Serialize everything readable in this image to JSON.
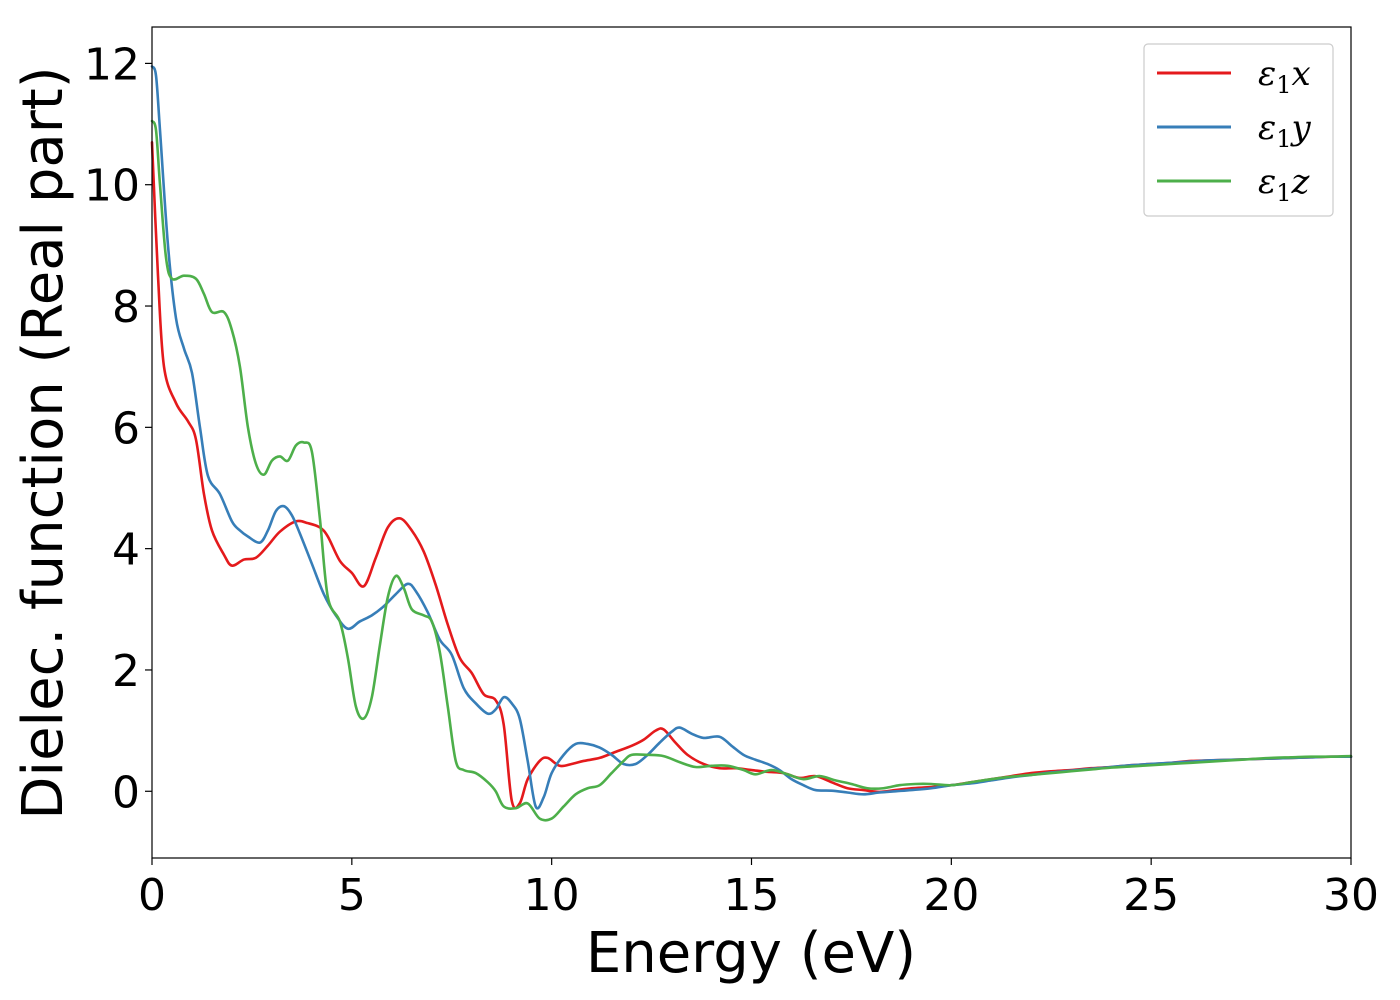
{
  "chart_data": {
    "type": "line",
    "title": "",
    "xlabel": "Energy (eV)",
    "ylabel": "Dielec. function (Real part)",
    "xlim": [
      0,
      30
    ],
    "ylim": [
      -1.1,
      12.6
    ],
    "xticks": [
      0,
      5,
      10,
      15,
      20,
      25,
      30
    ],
    "yticks": [
      0,
      2,
      4,
      6,
      8,
      10,
      12
    ],
    "xtick_labels": [
      "0",
      "5",
      "10",
      "15",
      "20",
      "25",
      "30"
    ],
    "ytick_labels": [
      "0",
      "2",
      "4",
      "6",
      "8",
      "10",
      "12"
    ],
    "grid": false,
    "legend_position": "top-right",
    "series": [
      {
        "name": "ε1x",
        "name_base": "ε",
        "name_sub": "1",
        "name_suffix": "x",
        "color": "#e41a1c",
        "points": [
          [
            0,
            10.7
          ],
          [
            0.15,
            8.5
          ],
          [
            0.3,
            7.0
          ],
          [
            0.6,
            6.4
          ],
          [
            0.9,
            6.1
          ],
          [
            1.1,
            5.8
          ],
          [
            1.3,
            4.9
          ],
          [
            1.5,
            4.3
          ],
          [
            1.8,
            3.9
          ],
          [
            2.0,
            3.72
          ],
          [
            2.3,
            3.82
          ],
          [
            2.6,
            3.85
          ],
          [
            2.9,
            4.05
          ],
          [
            3.2,
            4.28
          ],
          [
            3.6,
            4.45
          ],
          [
            3.9,
            4.42
          ],
          [
            4.2,
            4.35
          ],
          [
            4.4,
            4.2
          ],
          [
            4.7,
            3.8
          ],
          [
            5.0,
            3.6
          ],
          [
            5.3,
            3.38
          ],
          [
            5.6,
            3.85
          ],
          [
            5.9,
            4.35
          ],
          [
            6.2,
            4.5
          ],
          [
            6.5,
            4.3
          ],
          [
            6.8,
            3.95
          ],
          [
            7.1,
            3.4
          ],
          [
            7.4,
            2.75
          ],
          [
            7.7,
            2.2
          ],
          [
            8.0,
            1.95
          ],
          [
            8.3,
            1.6
          ],
          [
            8.6,
            1.5
          ],
          [
            8.8,
            1.1
          ],
          [
            9.0,
            -0.15
          ],
          [
            9.2,
            -0.2
          ],
          [
            9.4,
            0.2
          ],
          [
            9.7,
            0.5
          ],
          [
            9.9,
            0.55
          ],
          [
            10.2,
            0.42
          ],
          [
            10.5,
            0.45
          ],
          [
            10.8,
            0.5
          ],
          [
            11.2,
            0.55
          ],
          [
            11.6,
            0.65
          ],
          [
            12.0,
            0.75
          ],
          [
            12.3,
            0.85
          ],
          [
            12.6,
            1.0
          ],
          [
            12.8,
            1.02
          ],
          [
            13.1,
            0.8
          ],
          [
            13.4,
            0.6
          ],
          [
            13.8,
            0.45
          ],
          [
            14.2,
            0.38
          ],
          [
            14.6,
            0.38
          ],
          [
            15.0,
            0.35
          ],
          [
            15.4,
            0.32
          ],
          [
            15.8,
            0.3
          ],
          [
            16.2,
            0.22
          ],
          [
            16.6,
            0.25
          ],
          [
            17.0,
            0.15
          ],
          [
            17.4,
            0.05
          ],
          [
            17.8,
            0.02
          ],
          [
            18.2,
            -0.01
          ],
          [
            18.6,
            0.02
          ],
          [
            19.0,
            0.05
          ],
          [
            19.5,
            0.07
          ],
          [
            20.0,
            0.1
          ],
          [
            20.5,
            0.15
          ],
          [
            21.0,
            0.2
          ],
          [
            21.5,
            0.25
          ],
          [
            22.0,
            0.3
          ],
          [
            22.5,
            0.33
          ],
          [
            23.0,
            0.35
          ],
          [
            23.5,
            0.38
          ],
          [
            24.0,
            0.4
          ],
          [
            24.5,
            0.43
          ],
          [
            25.0,
            0.45
          ],
          [
            25.5,
            0.47
          ],
          [
            26.0,
            0.5
          ],
          [
            26.5,
            0.51
          ],
          [
            27.0,
            0.52
          ],
          [
            27.5,
            0.53
          ],
          [
            28.0,
            0.54
          ],
          [
            28.5,
            0.55
          ],
          [
            29.0,
            0.56
          ],
          [
            29.5,
            0.57
          ],
          [
            30.0,
            0.57
          ]
        ]
      },
      {
        "name": "ε1y",
        "name_base": "ε",
        "name_sub": "1",
        "name_suffix": "y",
        "color": "#377eb8",
        "points": [
          [
            0,
            11.95
          ],
          [
            0.1,
            11.8
          ],
          [
            0.2,
            10.9
          ],
          [
            0.4,
            9.0
          ],
          [
            0.6,
            7.8
          ],
          [
            0.8,
            7.3
          ],
          [
            1.0,
            6.9
          ],
          [
            1.2,
            6.0
          ],
          [
            1.4,
            5.2
          ],
          [
            1.7,
            4.9
          ],
          [
            2.0,
            4.45
          ],
          [
            2.2,
            4.3
          ],
          [
            2.4,
            4.2
          ],
          [
            2.7,
            4.1
          ],
          [
            2.9,
            4.3
          ],
          [
            3.1,
            4.62
          ],
          [
            3.3,
            4.7
          ],
          [
            3.5,
            4.55
          ],
          [
            3.7,
            4.25
          ],
          [
            4.0,
            3.75
          ],
          [
            4.3,
            3.25
          ],
          [
            4.6,
            2.9
          ],
          [
            4.9,
            2.68
          ],
          [
            5.2,
            2.8
          ],
          [
            5.5,
            2.9
          ],
          [
            5.8,
            3.05
          ],
          [
            6.1,
            3.25
          ],
          [
            6.4,
            3.42
          ],
          [
            6.6,
            3.3
          ],
          [
            6.9,
            2.95
          ],
          [
            7.2,
            2.5
          ],
          [
            7.5,
            2.25
          ],
          [
            7.8,
            1.7
          ],
          [
            8.1,
            1.45
          ],
          [
            8.4,
            1.28
          ],
          [
            8.6,
            1.35
          ],
          [
            8.8,
            1.55
          ],
          [
            9.0,
            1.45
          ],
          [
            9.2,
            1.2
          ],
          [
            9.4,
            0.5
          ],
          [
            9.6,
            -0.25
          ],
          [
            9.8,
            -0.1
          ],
          [
            10.0,
            0.3
          ],
          [
            10.3,
            0.6
          ],
          [
            10.6,
            0.78
          ],
          [
            10.9,
            0.78
          ],
          [
            11.2,
            0.72
          ],
          [
            11.5,
            0.6
          ],
          [
            11.8,
            0.45
          ],
          [
            12.1,
            0.45
          ],
          [
            12.4,
            0.6
          ],
          [
            12.7,
            0.8
          ],
          [
            13.0,
            0.98
          ],
          [
            13.2,
            1.05
          ],
          [
            13.5,
            0.95
          ],
          [
            13.8,
            0.88
          ],
          [
            14.2,
            0.9
          ],
          [
            14.5,
            0.75
          ],
          [
            14.8,
            0.6
          ],
          [
            15.1,
            0.52
          ],
          [
            15.4,
            0.45
          ],
          [
            15.7,
            0.35
          ],
          [
            16.0,
            0.2
          ],
          [
            16.3,
            0.1
          ],
          [
            16.6,
            0.02
          ],
          [
            17.0,
            0.01
          ],
          [
            17.4,
            -0.02
          ],
          [
            17.8,
            -0.05
          ],
          [
            18.2,
            -0.02
          ],
          [
            18.6,
            0.0
          ],
          [
            19.0,
            0.02
          ],
          [
            19.5,
            0.05
          ],
          [
            20.0,
            0.1
          ],
          [
            20.5,
            0.13
          ],
          [
            21.0,
            0.18
          ],
          [
            21.5,
            0.23
          ],
          [
            22.0,
            0.27
          ],
          [
            22.5,
            0.31
          ],
          [
            23.0,
            0.34
          ],
          [
            23.5,
            0.37
          ],
          [
            24.0,
            0.4
          ],
          [
            24.5,
            0.43
          ],
          [
            25.0,
            0.45
          ],
          [
            25.5,
            0.47
          ],
          [
            26.0,
            0.49
          ],
          [
            26.5,
            0.51
          ],
          [
            27.0,
            0.52
          ],
          [
            27.5,
            0.53
          ],
          [
            28.0,
            0.54
          ],
          [
            28.5,
            0.55
          ],
          [
            29.0,
            0.56
          ],
          [
            29.5,
            0.57
          ],
          [
            30.0,
            0.57
          ]
        ]
      },
      {
        "name": "ε1z",
        "name_base": "ε",
        "name_sub": "1",
        "name_suffix": "z",
        "color": "#4daf4a",
        "points": [
          [
            0,
            11.05
          ],
          [
            0.1,
            10.9
          ],
          [
            0.2,
            10.0
          ],
          [
            0.35,
            8.8
          ],
          [
            0.5,
            8.45
          ],
          [
            0.8,
            8.5
          ],
          [
            1.1,
            8.45
          ],
          [
            1.3,
            8.2
          ],
          [
            1.5,
            7.9
          ],
          [
            1.8,
            7.9
          ],
          [
            2.0,
            7.6
          ],
          [
            2.2,
            7.0
          ],
          [
            2.4,
            6.0
          ],
          [
            2.6,
            5.4
          ],
          [
            2.8,
            5.22
          ],
          [
            3.0,
            5.45
          ],
          [
            3.2,
            5.52
          ],
          [
            3.4,
            5.45
          ],
          [
            3.6,
            5.7
          ],
          [
            3.8,
            5.75
          ],
          [
            4.0,
            5.6
          ],
          [
            4.2,
            4.5
          ],
          [
            4.4,
            3.2
          ],
          [
            4.7,
            2.8
          ],
          [
            4.9,
            2.2
          ],
          [
            5.1,
            1.4
          ],
          [
            5.3,
            1.2
          ],
          [
            5.5,
            1.55
          ],
          [
            5.7,
            2.4
          ],
          [
            5.9,
            3.2
          ],
          [
            6.1,
            3.55
          ],
          [
            6.3,
            3.35
          ],
          [
            6.5,
            3.0
          ],
          [
            6.8,
            2.9
          ],
          [
            7.0,
            2.8
          ],
          [
            7.2,
            2.3
          ],
          [
            7.4,
            1.4
          ],
          [
            7.6,
            0.5
          ],
          [
            7.8,
            0.35
          ],
          [
            8.1,
            0.3
          ],
          [
            8.4,
            0.15
          ],
          [
            8.6,
            0.0
          ],
          [
            8.8,
            -0.25
          ],
          [
            9.1,
            -0.28
          ],
          [
            9.4,
            -0.2
          ],
          [
            9.7,
            -0.45
          ],
          [
            10.0,
            -0.45
          ],
          [
            10.3,
            -0.25
          ],
          [
            10.6,
            -0.05
          ],
          [
            10.9,
            0.05
          ],
          [
            11.2,
            0.1
          ],
          [
            11.5,
            0.3
          ],
          [
            11.8,
            0.5
          ],
          [
            12.0,
            0.6
          ],
          [
            12.4,
            0.6
          ],
          [
            12.8,
            0.58
          ],
          [
            13.2,
            0.48
          ],
          [
            13.6,
            0.4
          ],
          [
            14.0,
            0.42
          ],
          [
            14.4,
            0.42
          ],
          [
            14.8,
            0.35
          ],
          [
            15.1,
            0.28
          ],
          [
            15.5,
            0.35
          ],
          [
            15.9,
            0.28
          ],
          [
            16.3,
            0.2
          ],
          [
            16.7,
            0.25
          ],
          [
            17.1,
            0.18
          ],
          [
            17.5,
            0.12
          ],
          [
            17.9,
            0.05
          ],
          [
            18.3,
            0.05
          ],
          [
            18.7,
            0.1
          ],
          [
            19.1,
            0.12
          ],
          [
            19.5,
            0.12
          ],
          [
            20.0,
            0.1
          ],
          [
            20.5,
            0.15
          ],
          [
            21.0,
            0.2
          ],
          [
            21.5,
            0.24
          ],
          [
            22.0,
            0.27
          ],
          [
            22.5,
            0.3
          ],
          [
            23.0,
            0.33
          ],
          [
            23.5,
            0.36
          ],
          [
            24.0,
            0.39
          ],
          [
            24.5,
            0.41
          ],
          [
            25.0,
            0.43
          ],
          [
            25.5,
            0.45
          ],
          [
            26.0,
            0.47
          ],
          [
            26.5,
            0.49
          ],
          [
            27.0,
            0.51
          ],
          [
            27.5,
            0.53
          ],
          [
            28.0,
            0.55
          ],
          [
            28.5,
            0.56
          ],
          [
            29.0,
            0.57
          ],
          [
            29.5,
            0.57
          ],
          [
            30.0,
            0.58
          ]
        ]
      }
    ]
  }
}
